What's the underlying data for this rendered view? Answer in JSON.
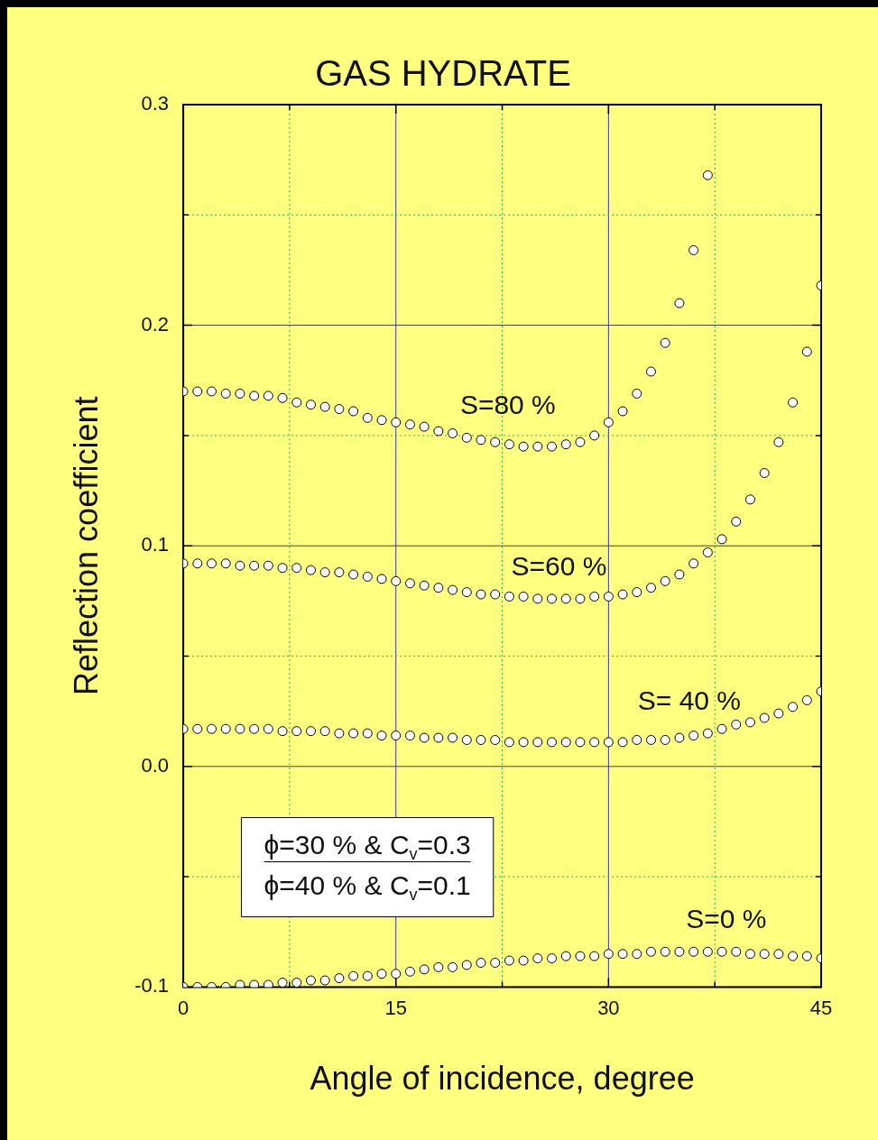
{
  "chart_data": {
    "type": "scatter",
    "title": "GAS HYDRATE",
    "xlabel": "Angle of incidence, degree",
    "ylabel": "Reflection coefficient",
    "x": [
      0,
      1,
      2,
      3,
      4,
      5,
      6,
      7,
      8,
      9,
      10,
      11,
      12,
      13,
      14,
      15,
      16,
      17,
      18,
      19,
      20,
      21,
      22,
      23,
      24,
      25,
      26,
      27,
      28,
      29,
      30,
      31,
      32,
      33,
      34,
      35,
      36,
      37,
      38,
      39,
      40,
      41,
      42,
      43,
      44,
      45
    ],
    "series": [
      {
        "color": "#ffffff",
        "values": [
          0.17,
          0.17,
          0.17,
          0.169,
          0.169,
          0.168,
          0.168,
          0.167,
          0.165,
          0.164,
          0.163,
          0.162,
          0.161,
          0.158,
          0.157,
          0.156,
          0.155,
          0.154,
          0.152,
          0.151,
          0.149,
          0.148,
          0.147,
          0.146,
          0.145,
          0.145,
          0.145,
          0.146,
          0.147,
          0.15,
          0.156,
          0.161,
          0.169,
          0.179,
          0.192,
          0.21,
          0.234,
          0.268,
          null,
          null,
          null,
          null,
          null,
          null,
          null,
          null
        ]
      },
      {
        "color": "#ffffff",
        "values": [
          0.092,
          0.092,
          0.092,
          0.092,
          0.091,
          0.091,
          0.091,
          0.09,
          0.09,
          0.089,
          0.088,
          0.088,
          0.087,
          0.086,
          0.085,
          0.084,
          0.083,
          0.082,
          0.081,
          0.08,
          0.079,
          0.078,
          0.078,
          0.077,
          0.077,
          0.076,
          0.076,
          0.076,
          0.076,
          0.077,
          0.077,
          0.078,
          0.079,
          0.081,
          0.084,
          0.087,
          0.092,
          0.097,
          0.103,
          0.111,
          0.121,
          0.133,
          0.147,
          0.165,
          0.188,
          0.218
        ]
      },
      {
        "color": "#ffffff",
        "values": [
          0.017,
          0.017,
          0.017,
          0.017,
          0.017,
          0.017,
          0.017,
          0.016,
          0.016,
          0.016,
          0.016,
          0.015,
          0.015,
          0.015,
          0.014,
          0.014,
          0.014,
          0.013,
          0.013,
          0.013,
          0.012,
          0.012,
          0.012,
          0.011,
          0.011,
          0.011,
          0.011,
          0.011,
          0.011,
          0.011,
          0.011,
          0.011,
          0.012,
          0.012,
          0.012,
          0.013,
          0.014,
          0.015,
          0.017,
          0.019,
          0.02,
          0.022,
          0.024,
          0.027,
          0.03,
          0.034
        ]
      },
      {
        "color": "#ffffff",
        "values": [
          -0.1,
          -0.1,
          -0.1,
          -0.1,
          -0.099,
          -0.099,
          -0.099,
          -0.098,
          -0.098,
          -0.097,
          -0.097,
          -0.096,
          -0.095,
          -0.095,
          -0.094,
          -0.094,
          -0.093,
          -0.092,
          -0.091,
          -0.091,
          -0.09,
          -0.089,
          -0.089,
          -0.088,
          -0.088,
          -0.087,
          -0.087,
          -0.086,
          -0.086,
          -0.086,
          -0.085,
          -0.085,
          -0.085,
          -0.084,
          -0.084,
          -0.084,
          -0.084,
          -0.084,
          -0.084,
          -0.084,
          -0.085,
          -0.085,
          -0.085,
          -0.086,
          -0.086,
          -0.087
        ]
      }
    ],
    "xlim": [
      0,
      45
    ],
    "xticks": [
      0,
      {
        "value": 7.5,
        "label": null
      },
      15,
      {
        "value": 22.5,
        "label": null
      },
      30,
      {
        "value": 37.5,
        "label": null
      },
      45
    ],
    "ylim": [
      -0.1,
      0.3
    ],
    "yticks": [
      {
        "value": -0.1,
        "label": "-0.1"
      },
      {
        "value": -0.05,
        "label": null
      },
      {
        "value": 0,
        "label": "0.0"
      },
      {
        "value": 0.05,
        "label": null
      },
      {
        "value": 0.1,
        "label": "0.1"
      },
      {
        "value": 0.15,
        "label": null
      },
      {
        "value": 0.2,
        "label": "0.2"
      },
      {
        "value": 0.25,
        "label": null
      },
      {
        "value": 0.3,
        "label": "0.3"
      }
    ],
    "grid": true,
    "legend": false,
    "marker": "circle",
    "annotations": [
      "S=80 %",
      "S=60 %",
      "S= 40 %",
      "S=0 %",
      "ϕ=30 % & C$_{v}$=0.3",
      "ϕ=40 % & C$_{v}$=0.1"
    ]
  }
}
